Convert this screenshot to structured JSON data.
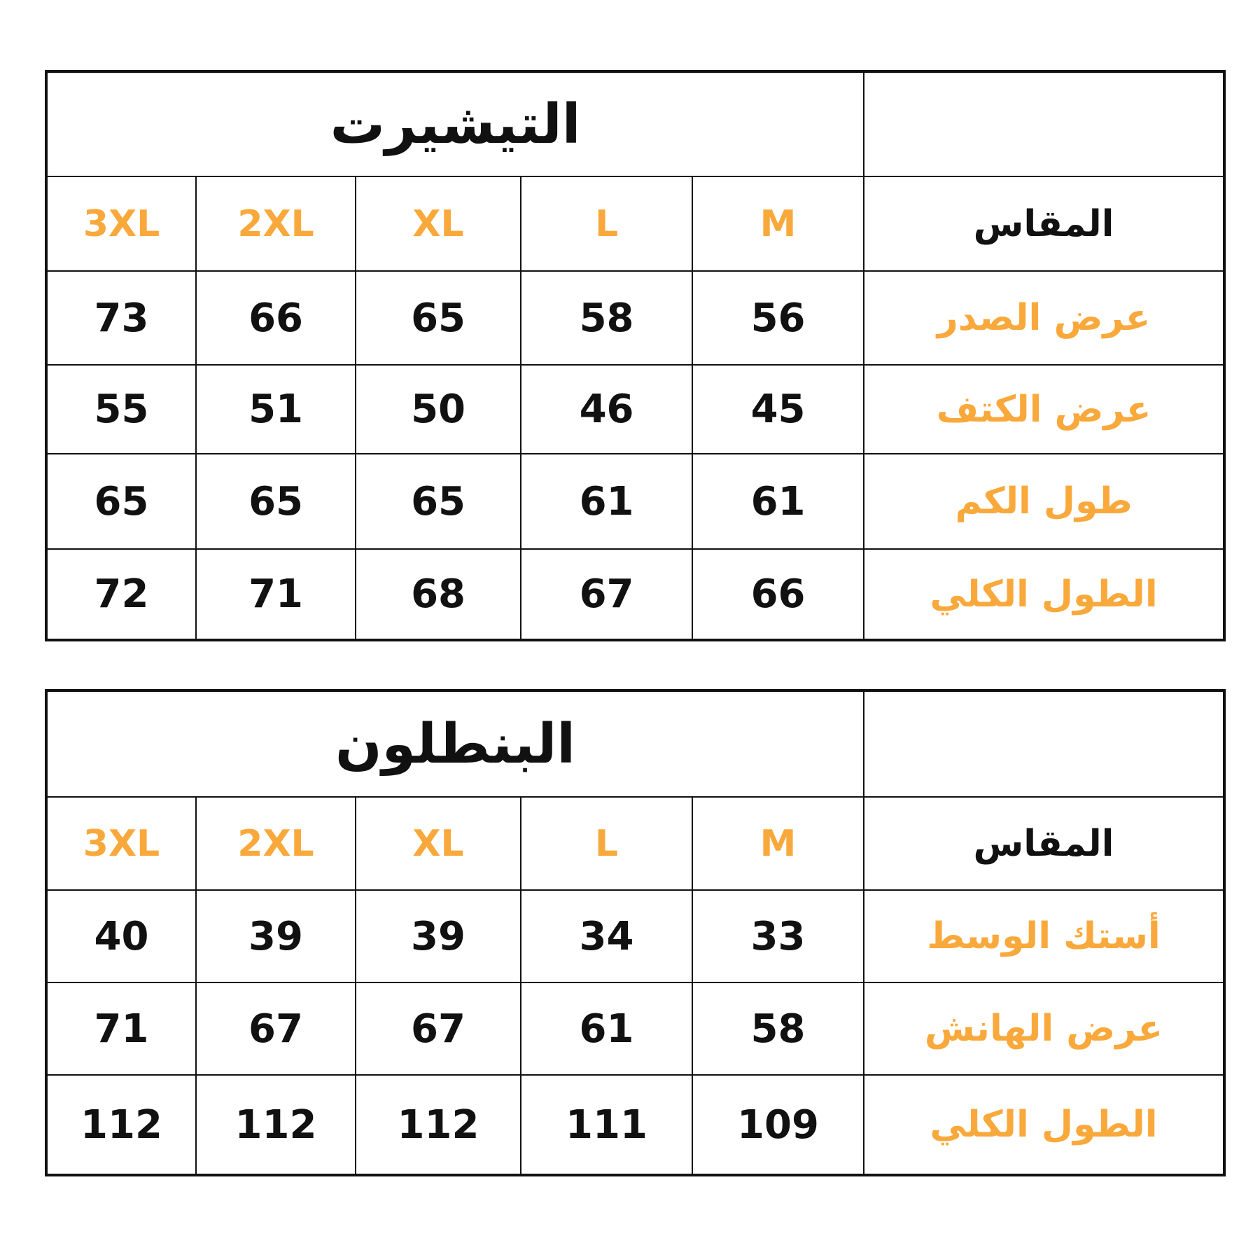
{
  "accent_color": "#f9a93b",
  "tables": [
    {
      "title": "التيشيرت",
      "measure_label": "المقاس",
      "sizes": [
        "M",
        "L",
        "XL",
        "2XL",
        "3XL"
      ],
      "rows": [
        {
          "label": "عرض الصدر",
          "values": [
            "56",
            "58",
            "65",
            "66",
            "73"
          ]
        },
        {
          "label": "عرض الكتف",
          "values": [
            "45",
            "46",
            "50",
            "51",
            "55"
          ]
        },
        {
          "label": "طول الكم",
          "values": [
            "61",
            "61",
            "65",
            "65",
            "65"
          ]
        },
        {
          "label": "الطول الكلي",
          "values": [
            "66",
            "67",
            "68",
            "71",
            "72"
          ]
        }
      ]
    },
    {
      "title": "البنطلون",
      "measure_label": "المقاس",
      "sizes": [
        "M",
        "L",
        "XL",
        "2XL",
        "3XL"
      ],
      "rows": [
        {
          "label": "أستك الوسط",
          "values": [
            "33",
            "34",
            "39",
            "39",
            "40"
          ]
        },
        {
          "label": "عرض الهانش",
          "values": [
            "58",
            "61",
            "67",
            "67",
            "71"
          ]
        },
        {
          "label": "الطول الكلي",
          "values": [
            "109",
            "111",
            "112",
            "112",
            "112"
          ]
        }
      ]
    }
  ]
}
